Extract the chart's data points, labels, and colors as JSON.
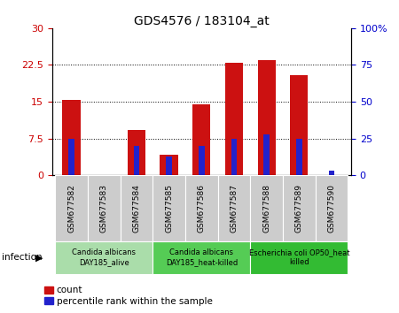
{
  "title": "GDS4576 / 183104_at",
  "samples": [
    "GSM677582",
    "GSM677583",
    "GSM677584",
    "GSM677585",
    "GSM677586",
    "GSM677587",
    "GSM677588",
    "GSM677589",
    "GSM677590"
  ],
  "counts": [
    15.4,
    0,
    9.3,
    4.2,
    14.4,
    23.0,
    23.4,
    20.5,
    0
  ],
  "percentile_ranks": [
    25,
    0,
    20,
    13,
    20,
    25,
    28,
    25,
    3
  ],
  "ylim_left": [
    0,
    30
  ],
  "ylim_right": [
    0,
    100
  ],
  "yticks_left": [
    0,
    7.5,
    15,
    22.5,
    30
  ],
  "ytick_labels_left": [
    "0",
    "7.5",
    "15",
    "22.5",
    "30"
  ],
  "yticks_right": [
    0,
    25,
    50,
    75,
    100
  ],
  "ytick_labels_right": [
    "0",
    "25",
    "50",
    "75",
    "100%"
  ],
  "groups": [
    {
      "label": "Candida albicans\nDAY185_alive",
      "start": 0,
      "end": 3,
      "color": "#aaddaa"
    },
    {
      "label": "Candida albicans\nDAY185_heat-killed",
      "start": 3,
      "end": 6,
      "color": "#55cc55"
    },
    {
      "label": "Escherichia coli OP50_heat\nkilled",
      "start": 6,
      "end": 9,
      "color": "#33bb33"
    }
  ],
  "bar_color": "#cc1111",
  "percentile_color": "#2222cc",
  "bar_width": 0.55,
  "pct_bar_width": 0.18,
  "left_color": "#cc0000",
  "right_color": "#0000cc",
  "tick_bg_color": "#cccccc",
  "plot_bg_color": "#ffffff",
  "group_label_fontsize": 6.0,
  "sample_label_fontsize": 6.5,
  "axis_label_fontsize": 8,
  "title_fontsize": 10,
  "legend_fontsize": 7.5,
  "infection_label": "infection",
  "legend_count_label": "count",
  "legend_percentile_label": "percentile rank within the sample"
}
